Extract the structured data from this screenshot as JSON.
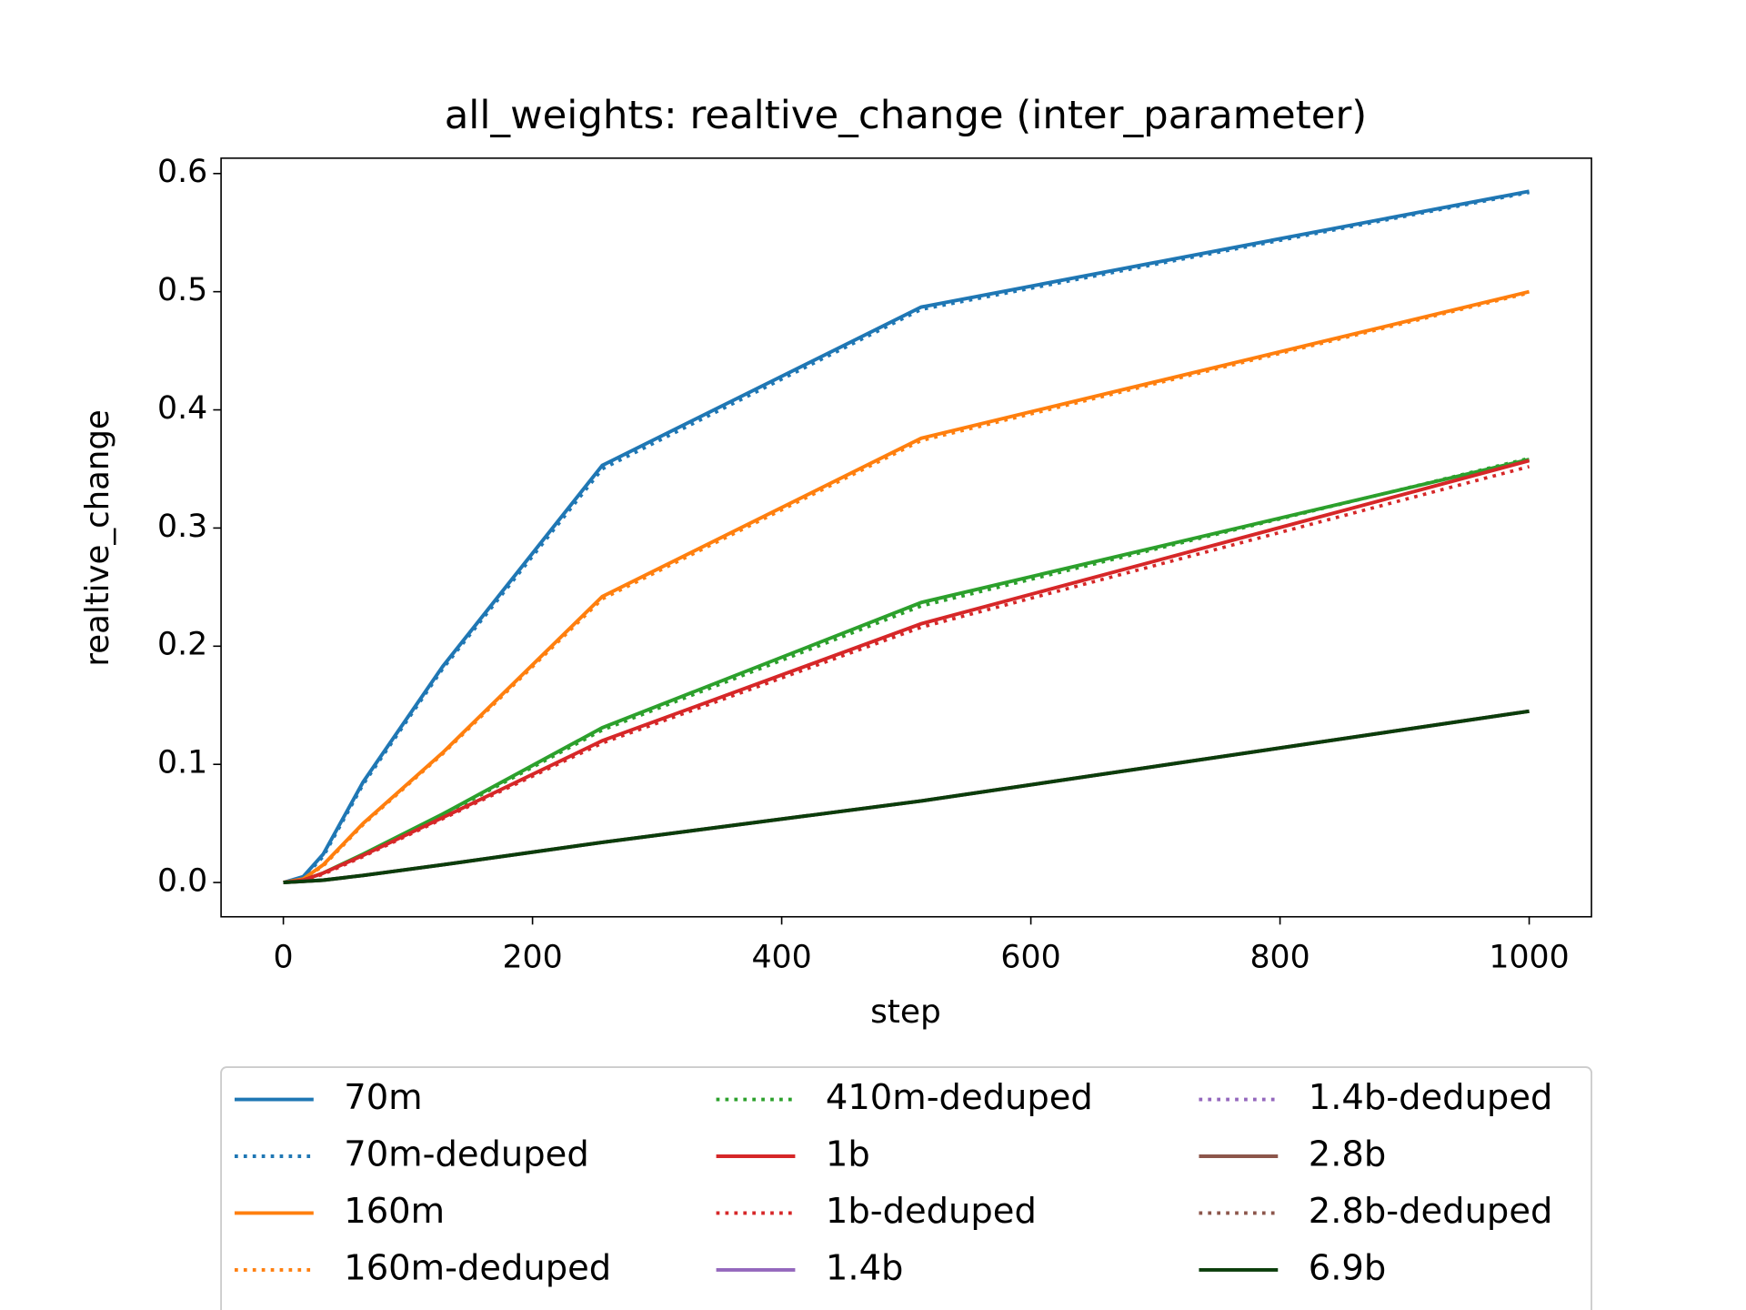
{
  "chart_data": {
    "type": "line",
    "title": "all_weights: realtive_change (inter_parameter)",
    "x_label": "step",
    "y_label": "realtive_change",
    "x": [
      0,
      16,
      32,
      64,
      128,
      256,
      512,
      1000
    ],
    "xlim": [
      -50,
      1050
    ],
    "ylim": [
      -0.029,
      0.613
    ],
    "xticks": [
      0,
      200,
      400,
      600,
      800,
      1000
    ],
    "yticks": [
      {
        "value": 0,
        "label": "0.0"
      },
      0.1,
      0.2,
      0.3,
      0.4,
      0.5,
      0.6
    ],
    "series": [
      {
        "name": "70m",
        "color": "#1f77b4",
        "style": "solid",
        "values": [
          0,
          0.005,
          0.024,
          0.085,
          0.183,
          0.353,
          0.487,
          0.585
        ]
      },
      {
        "name": "70m-deduped",
        "color": "#1f77b4",
        "style": "dotted",
        "values": [
          0,
          0.004,
          0.022,
          0.083,
          0.181,
          0.35,
          0.485,
          0.584
        ]
      },
      {
        "name": "160m",
        "color": "#ff7f0e",
        "style": "solid",
        "values": [
          0,
          0.003,
          0.015,
          0.05,
          0.11,
          0.242,
          0.376,
          0.5
        ]
      },
      {
        "name": "160m-deduped",
        "color": "#ff7f0e",
        "style": "dotted",
        "values": [
          0,
          0.003,
          0.014,
          0.049,
          0.109,
          0.24,
          0.374,
          0.499
        ]
      },
      {
        "color": "#2ca02c",
        "style": "solid",
        "values": [
          0,
          0.002,
          0.008,
          0.024,
          0.058,
          0.131,
          0.237,
          0.358
        ]
      },
      {
        "name": "410m-deduped",
        "color": "#2ca02c",
        "style": "dotted",
        "values": [
          0,
          0.002,
          0.008,
          0.023,
          0.057,
          0.129,
          0.234,
          0.359
        ]
      },
      {
        "name": "1b",
        "color": "#d62728",
        "style": "solid",
        "values": [
          0,
          0.002,
          0.008,
          0.023,
          0.055,
          0.12,
          0.219,
          0.357
        ]
      },
      {
        "name": "1b-deduped",
        "color": "#d62728",
        "style": "dotted",
        "values": [
          0,
          0.002,
          0.007,
          0.022,
          0.054,
          0.118,
          0.216,
          0.352
        ]
      },
      {
        "name": "1.4b",
        "color": "#9467bd",
        "style": "solid",
        "values": [
          0,
          0.001,
          0.002,
          0.006,
          0.015,
          0.034,
          0.069,
          0.145
        ]
      },
      {
        "name": "1.4b-deduped",
        "color": "#9467bd",
        "style": "dotted",
        "values": [
          0,
          0.001,
          0.002,
          0.006,
          0.015,
          0.034,
          0.069,
          0.145
        ]
      },
      {
        "name": "2.8b",
        "color": "#8c564b",
        "style": "solid",
        "values": [
          0,
          0.001,
          0.002,
          0.006,
          0.015,
          0.034,
          0.069,
          0.145
        ]
      },
      {
        "name": "2.8b-deduped",
        "color": "#8c564b",
        "style": "dotted",
        "values": [
          0,
          0.001,
          0.002,
          0.006,
          0.015,
          0.034,
          0.069,
          0.145
        ]
      },
      {
        "name": "6.9b",
        "color": "#0b3d0b",
        "style": "solid",
        "values": [
          0,
          0.001,
          0.002,
          0.006,
          0.015,
          0.034,
          0.069,
          0.145
        ]
      }
    ]
  }
}
